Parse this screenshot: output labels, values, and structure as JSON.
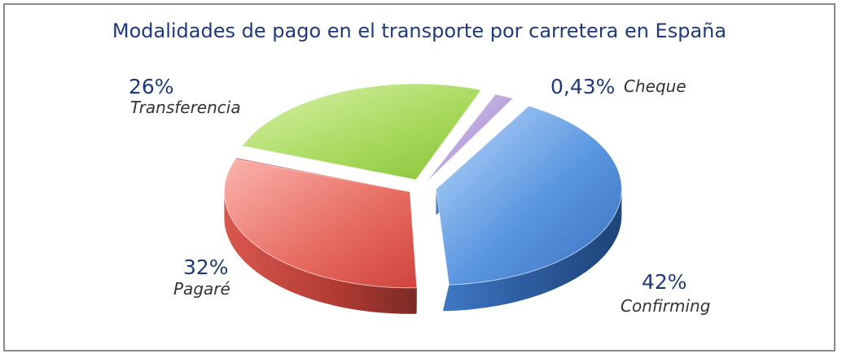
{
  "chart_data": {
    "type": "pie",
    "title": "Modalidades de pago en el transporte por carretera en España",
    "slices": [
      {
        "label": "Confirming",
        "value": 42,
        "display": "42%",
        "color": "#4a86d6"
      },
      {
        "label": "Pagaré",
        "value": 32,
        "display": "32%",
        "color": "#e0514a"
      },
      {
        "label": "Transferencia",
        "value": 26,
        "display": "26%",
        "color": "#9bd14a"
      },
      {
        "label": "Cheque",
        "value": 0.43,
        "display": "0,43%",
        "color": "#9c7bc9"
      }
    ],
    "legend": "none",
    "style": "3d-exploded"
  }
}
